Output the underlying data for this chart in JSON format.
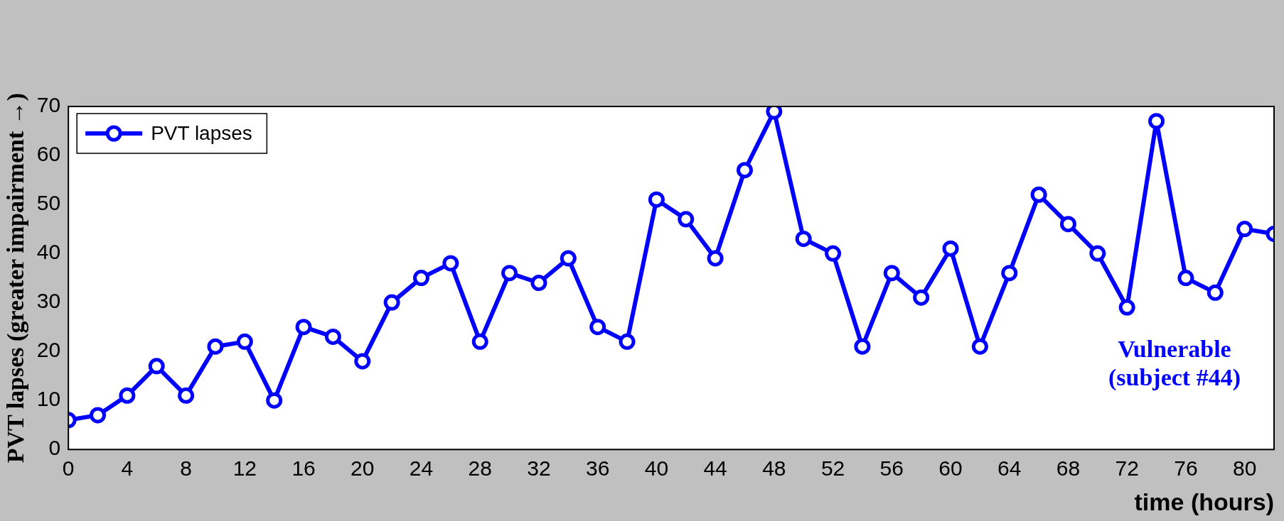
{
  "chart_data": {
    "type": "line",
    "xlabel": "time (hours)",
    "ylabel": "PVT lapses (greater impairment →)",
    "x": [
      0,
      2,
      4,
      6,
      8,
      10,
      12,
      14,
      16,
      18,
      20,
      22,
      24,
      26,
      28,
      30,
      32,
      34,
      36,
      38,
      40,
      42,
      44,
      46,
      48,
      50,
      52,
      54,
      56,
      58,
      60,
      62,
      64,
      66,
      68,
      70,
      72,
      74,
      76,
      78,
      80,
      82
    ],
    "series": [
      {
        "name": "PVT lapses",
        "color": "#0000ff",
        "values": [
          6,
          7,
          11,
          17,
          11,
          21,
          22,
          10,
          25,
          23,
          18,
          30,
          35,
          38,
          22,
          36,
          34,
          39,
          25,
          22,
          51,
          47,
          39,
          57,
          69,
          43,
          40,
          21,
          36,
          31,
          41,
          21,
          36,
          52,
          46,
          40,
          29,
          67,
          35,
          32,
          45,
          44
        ]
      }
    ],
    "xlim": [
      0,
      82
    ],
    "xticks": [
      0,
      4,
      8,
      12,
      16,
      20,
      24,
      28,
      32,
      36,
      40,
      44,
      48,
      52,
      56,
      60,
      64,
      68,
      72,
      76,
      80
    ],
    "ylim": [
      0,
      70
    ],
    "yticks": [
      0,
      10,
      20,
      30,
      40,
      50,
      60,
      70
    ],
    "annotations": [
      "Vulnerable\n(subject #44)"
    ],
    "legend": "top left",
    "marker": "circle",
    "line_style": "solid",
    "grid": false
  }
}
